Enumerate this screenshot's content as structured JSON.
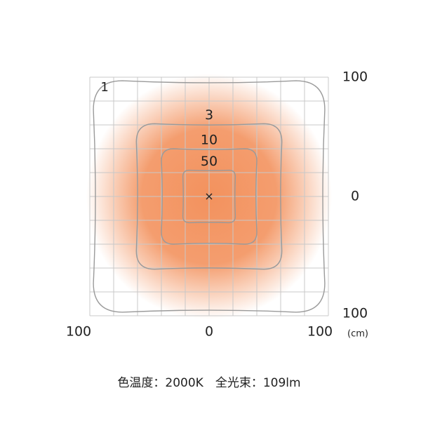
{
  "chart_data": {
    "type": "contour",
    "xlim": [
      -100,
      100
    ],
    "ylim": [
      -100,
      100
    ],
    "xticks": [
      {
        "value": -100,
        "label": "100"
      },
      0,
      100
    ],
    "yticks": [
      {
        "value": -100,
        "label": "100"
      },
      0,
      100
    ],
    "unit": "(cm)",
    "grid": true,
    "contours": [
      {
        "level": 1,
        "half_width": 97
      },
      {
        "level": 3,
        "half_width": 61
      },
      {
        "level": 10,
        "half_width": 40
      },
      {
        "level": 50,
        "half_width": 22
      }
    ],
    "glow_color": "#f28c55",
    "line_color": "#9a9a9a",
    "caption": "色温度：2000K　全光束：109lm"
  }
}
